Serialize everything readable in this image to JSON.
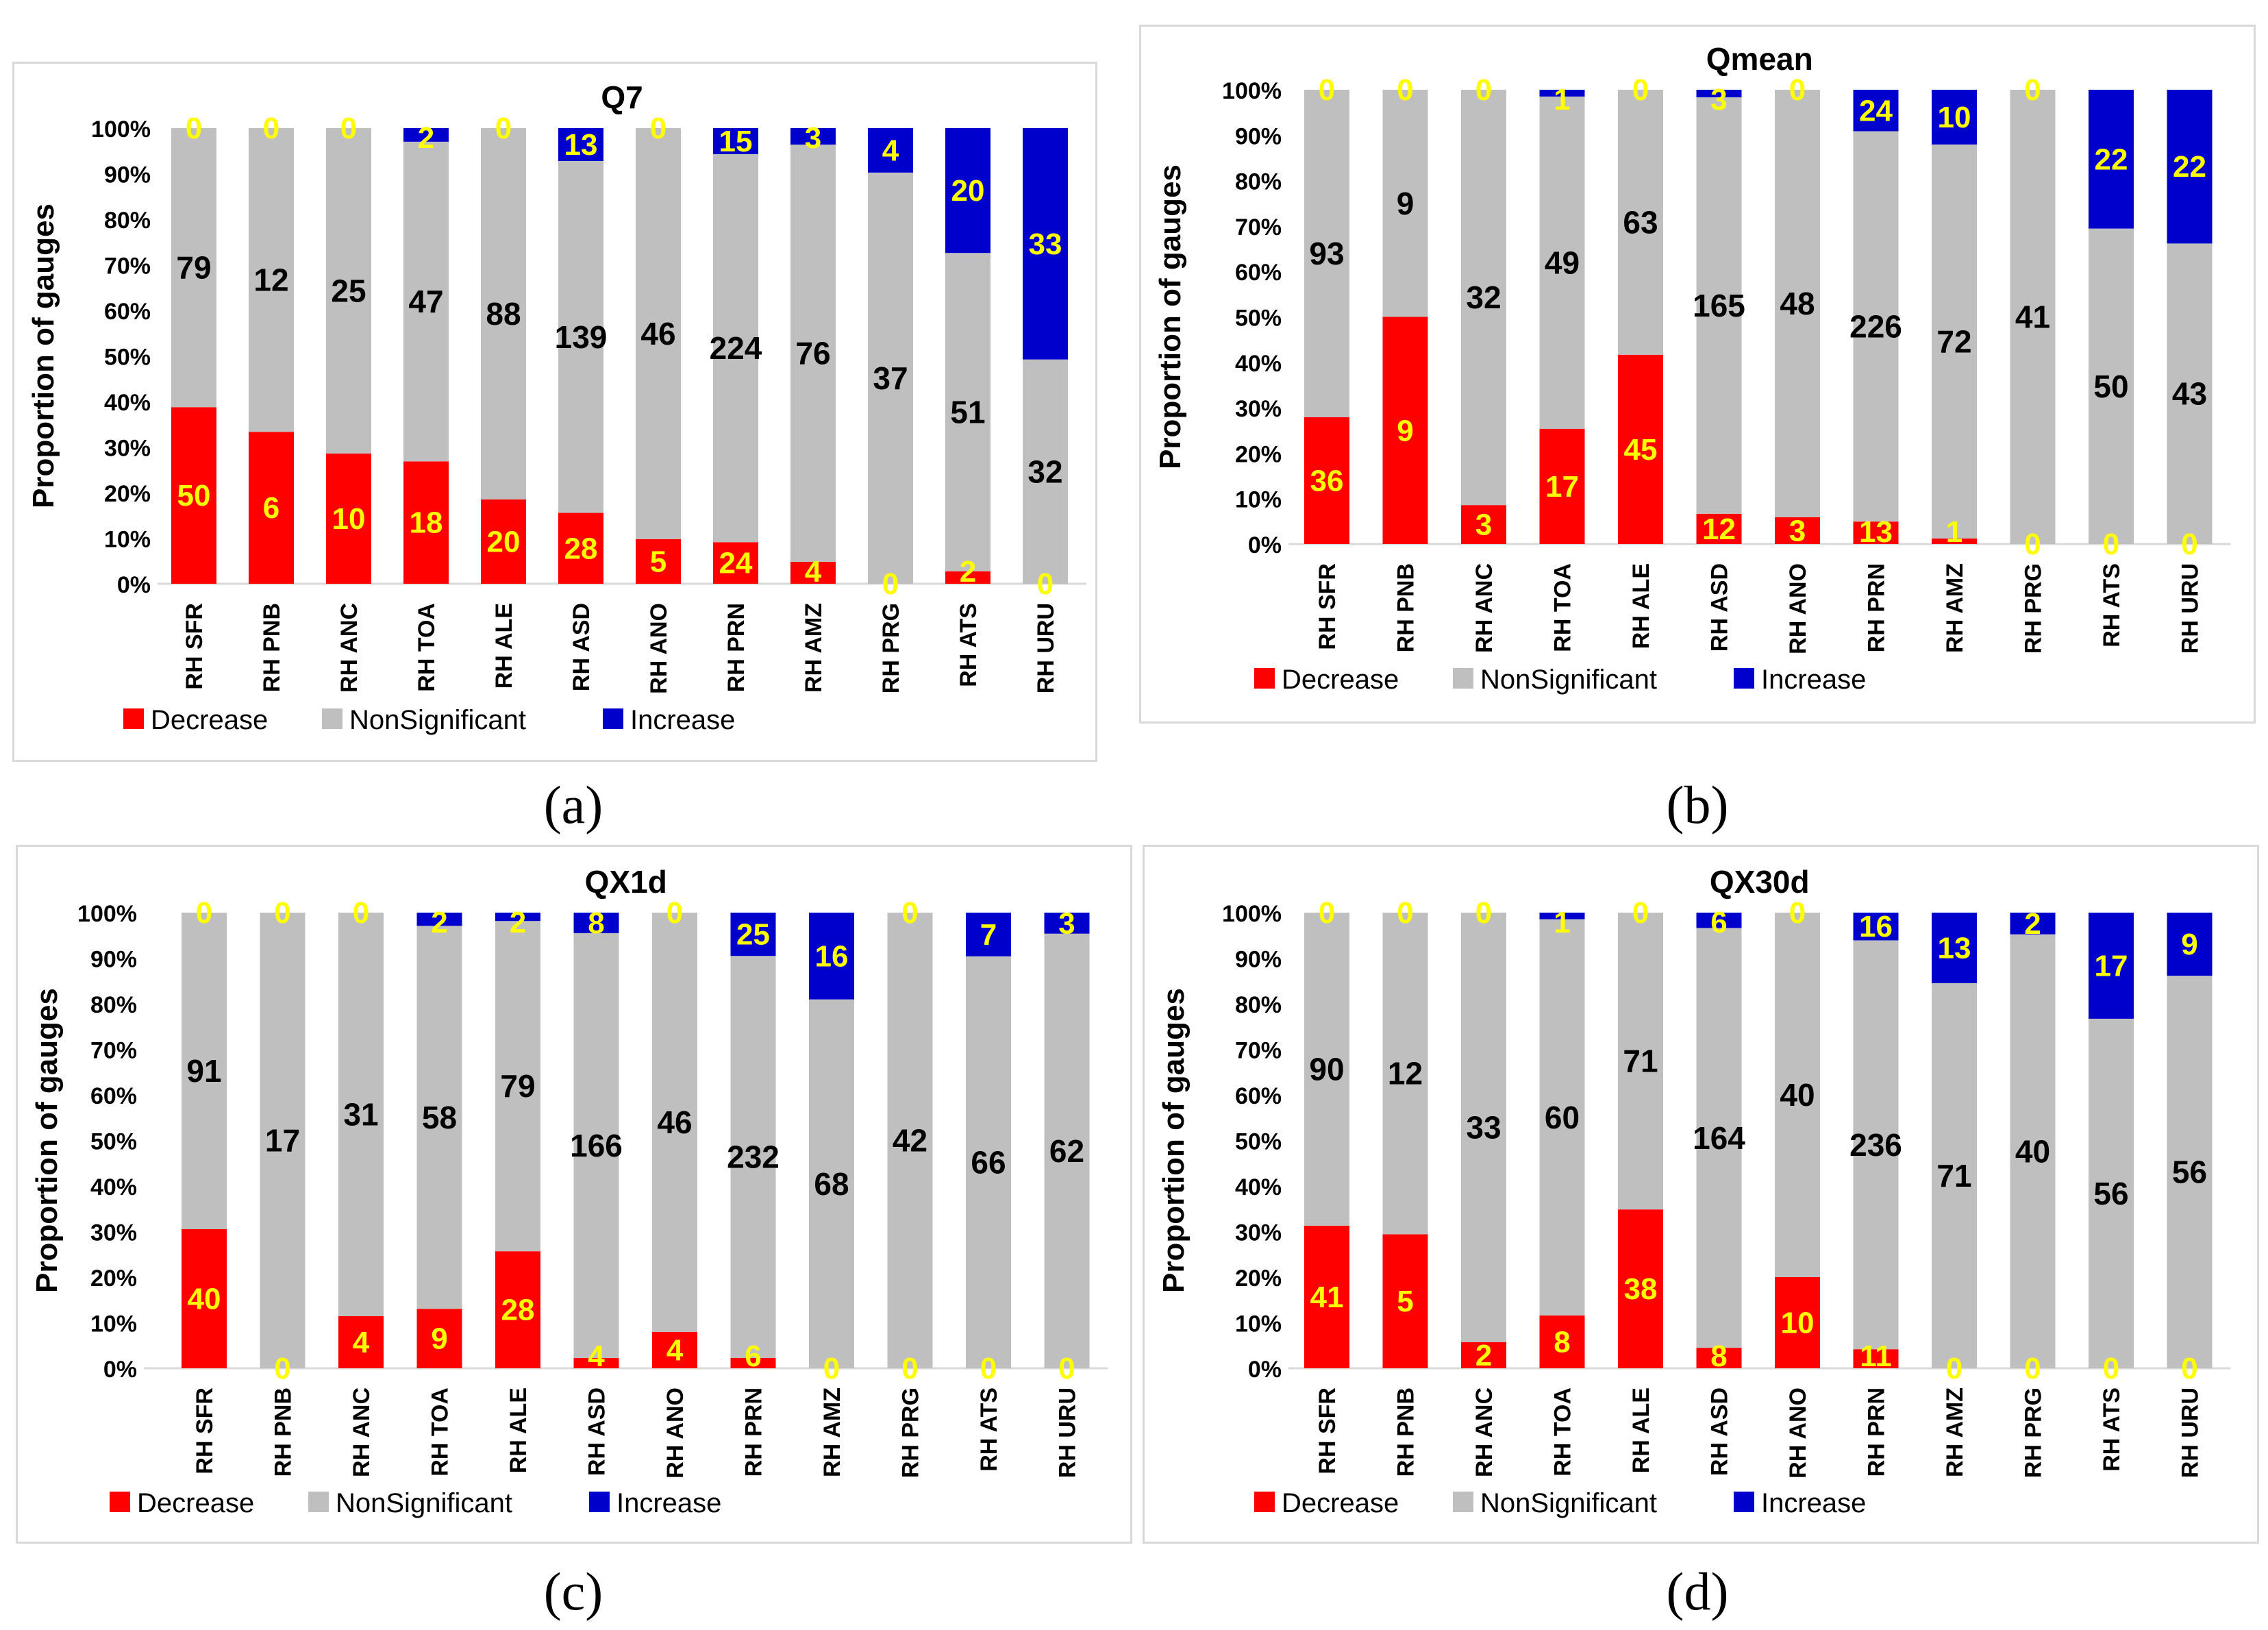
{
  "colors": {
    "decrease": "#ff0000",
    "nonsignificant": "#bfbfbf",
    "increase": "#0000cc",
    "label_yellow": "#ffff00",
    "label_black": "#000000"
  },
  "legend": {
    "decrease": "Decrease",
    "nonsignificant": "NonSignificant",
    "increase": "Increase"
  },
  "ylabel": "Proportion of gauges",
  "yticks": [
    "0%",
    "10%",
    "20%",
    "30%",
    "40%",
    "50%",
    "60%",
    "70%",
    "80%",
    "90%",
    "100%"
  ],
  "chart_data": [
    {
      "type": "bar",
      "stacked": "percent",
      "title": "Q7",
      "caption": "(a)",
      "ylabel": "Proportion of gauges",
      "ylim": [
        0,
        100
      ],
      "categories": [
        "RH SFR",
        "RH PNB",
        "RH ANC",
        "RH TOA",
        "RH ALE",
        "RH ASD",
        "RH ANO",
        "RH PRN",
        "RH AMZ",
        "RH PRG",
        "RH ATS",
        "RH URU"
      ],
      "series": [
        {
          "name": "Decrease",
          "values": [
            50,
            6,
            10,
            18,
            20,
            28,
            5,
            24,
            4,
            0,
            2,
            0
          ]
        },
        {
          "name": "NonSignificant",
          "values": [
            79,
            12,
            25,
            47,
            88,
            139,
            46,
            224,
            76,
            37,
            51,
            32
          ]
        },
        {
          "name": "Increase",
          "values": [
            0,
            0,
            0,
            2,
            0,
            13,
            0,
            15,
            3,
            4,
            20,
            33
          ]
        }
      ]
    },
    {
      "type": "bar",
      "stacked": "percent",
      "title": "Qmean",
      "caption": "(b)",
      "ylabel": "Proportion of gauges",
      "ylim": [
        0,
        100
      ],
      "categories": [
        "RH SFR",
        "RH PNB",
        "RH ANC",
        "RH TOA",
        "RH ALE",
        "RH ASD",
        "RH ANO",
        "RH PRN",
        "RH AMZ",
        "RH PRG",
        "RH ATS",
        "RH URU"
      ],
      "series": [
        {
          "name": "Decrease",
          "values": [
            36,
            9,
            3,
            17,
            45,
            12,
            3,
            13,
            1,
            0,
            0,
            0
          ]
        },
        {
          "name": "NonSignificant",
          "values": [
            93,
            9,
            32,
            49,
            63,
            165,
            48,
            226,
            72,
            41,
            50,
            43
          ]
        },
        {
          "name": "Increase",
          "values": [
            0,
            0,
            0,
            1,
            0,
            3,
            0,
            24,
            10,
            0,
            22,
            22
          ]
        }
      ]
    },
    {
      "type": "bar",
      "stacked": "percent",
      "title": "QX1d",
      "caption": "(c)",
      "ylabel": "Proportion of gauges",
      "ylim": [
        0,
        100
      ],
      "categories": [
        "RH SFR",
        "RH PNB",
        "RH ANC",
        "RH TOA",
        "RH ALE",
        "RH ASD",
        "RH ANO",
        "RH PRN",
        "RH AMZ",
        "RH PRG",
        "RH ATS",
        "RH URU"
      ],
      "series": [
        {
          "name": "Decrease",
          "values": [
            40,
            0,
            4,
            9,
            28,
            4,
            4,
            6,
            0,
            0,
            0,
            0
          ]
        },
        {
          "name": "NonSignificant",
          "values": [
            91,
            17,
            31,
            58,
            79,
            166,
            46,
            232,
            68,
            42,
            66,
            62
          ]
        },
        {
          "name": "Increase",
          "values": [
            0,
            0,
            0,
            2,
            2,
            8,
            0,
            25,
            16,
            0,
            7,
            3
          ]
        }
      ]
    },
    {
      "type": "bar",
      "stacked": "percent",
      "title": "QX30d",
      "caption": "(d)",
      "ylabel": "Proportion of gauges",
      "ylim": [
        0,
        100
      ],
      "categories": [
        "RH SFR",
        "RH PNB",
        "RH ANC",
        "RH TOA",
        "RH ALE",
        "RH ASD",
        "RH ANO",
        "RH PRN",
        "RH AMZ",
        "RH PRG",
        "RH ATS",
        "RH URU"
      ],
      "series": [
        {
          "name": "Decrease",
          "values": [
            41,
            5,
            2,
            8,
            38,
            8,
            10,
            11,
            0,
            0,
            0,
            0
          ]
        },
        {
          "name": "NonSignificant",
          "values": [
            90,
            12,
            33,
            60,
            71,
            164,
            40,
            236,
            71,
            40,
            56,
            56
          ]
        },
        {
          "name": "Increase",
          "values": [
            0,
            0,
            0,
            1,
            0,
            6,
            0,
            16,
            13,
            2,
            17,
            9
          ]
        }
      ]
    }
  ]
}
